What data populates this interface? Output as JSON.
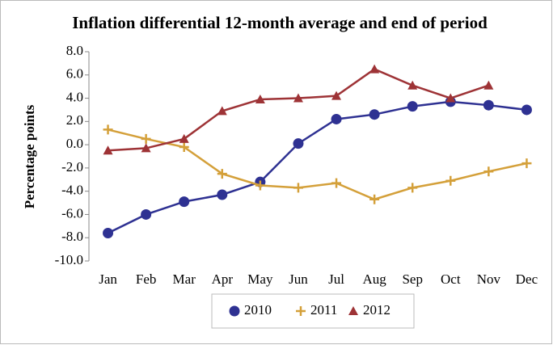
{
  "chart_data": {
    "type": "line",
    "title": "Inflation differential 12-month average and end of period",
    "y_label": "Percentage points",
    "categories": [
      "Jan",
      "Feb",
      "Mar",
      "Apr",
      "May",
      "Jun",
      "Jul",
      "Aug",
      "Sep",
      "Oct",
      "Nov",
      "Dec"
    ],
    "series": [
      {
        "name": "2010",
        "color": "#2e3192",
        "marker": "circle",
        "values": [
          -7.6,
          -6.0,
          -4.9,
          -4.3,
          -3.2,
          0.1,
          2.2,
          2.6,
          3.3,
          3.7,
          3.4,
          3.0
        ]
      },
      {
        "name": "2011",
        "color": "#d4a03a",
        "marker": "plus",
        "values": [
          1.3,
          0.5,
          -0.2,
          -2.5,
          -3.5,
          -3.7,
          -3.3,
          -4.7,
          -3.7,
          -3.1,
          -2.3,
          -1.6
        ]
      },
      {
        "name": "2012",
        "color": "#9e3336",
        "marker": "triangle",
        "values": [
          -0.5,
          -0.3,
          0.5,
          2.9,
          3.9,
          4.0,
          4.2,
          6.5,
          5.1,
          4.0,
          5.1,
          null
        ]
      }
    ],
    "ylim": [
      -10,
      8
    ],
    "yticks": [
      {
        "value": -10,
        "label": "-10.0"
      },
      {
        "value": -8,
        "label": "-8.0"
      },
      {
        "value": -6,
        "label": "-6.0"
      },
      {
        "value": -4,
        "label": "-4.0"
      },
      {
        "value": -2,
        "label": "-2.0"
      },
      {
        "value": 0,
        "label": "0.0"
      },
      {
        "value": 2,
        "label": "2.0"
      },
      {
        "value": 4,
        "label": "4.0"
      },
      {
        "value": 6,
        "label": "6.0"
      },
      {
        "value": 8,
        "label": "8.0"
      }
    ],
    "grid": false,
    "legend": "bottom"
  }
}
